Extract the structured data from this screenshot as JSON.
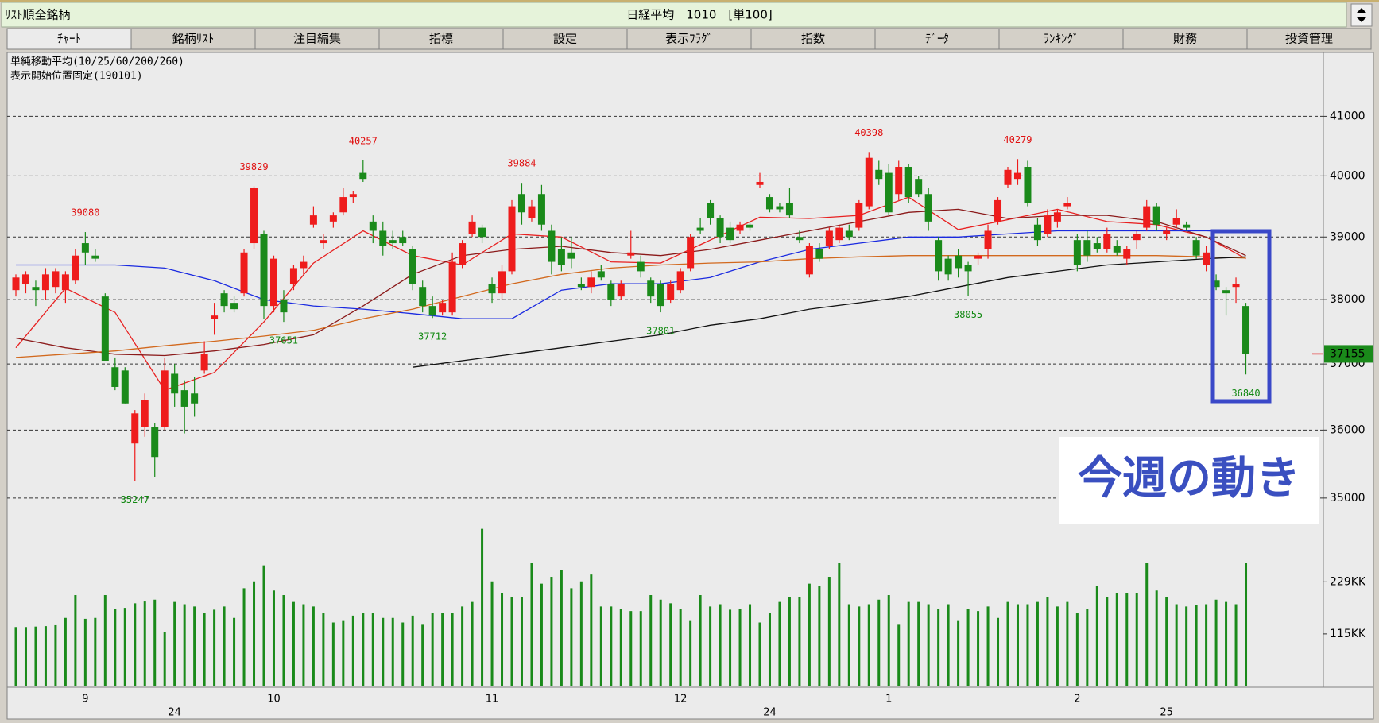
{
  "header": {
    "left": "ﾘｽﾄ順全銘柄",
    "center": "日経平均　1010　[単100]"
  },
  "tabs": [
    "ﾁｬｰﾄ",
    "銘柄ﾘｽﾄ",
    "注目編集",
    "指標",
    "設定",
    "表示ﾌﾗｸﾞ",
    "指数",
    "ﾃﾞｰﾀ",
    "ﾗﾝｷﾝｸﾞ",
    "財務",
    "投資管理"
  ],
  "overlay": {
    "text": "今週の動き"
  },
  "chart_data": {
    "type": "candlestick",
    "notes": [
      "単純移動平均(10/25/60/200/260)",
      "表示開始位置固定(190101)"
    ],
    "log_scale": true,
    "grid": true,
    "up_color": "#ee1c1c",
    "down_color": "#1a8a1a",
    "ylim": [
      34700,
      42100
    ],
    "yticks": [
      35000,
      36000,
      37000,
      38000,
      39000,
      40000,
      41000
    ],
    "ohlc": [
      [
        38150,
        38400,
        38050,
        38350
      ],
      [
        38250,
        38450,
        38100,
        38400
      ],
      [
        38200,
        38300,
        37900,
        38150
      ],
      [
        38150,
        38500,
        38000,
        38400
      ],
      [
        38200,
        38500,
        38100,
        38450
      ],
      [
        38150,
        38450,
        37950,
        38400
      ],
      [
        38300,
        38800,
        38250,
        38700
      ],
      [
        38900,
        39080,
        38550,
        38750
      ],
      [
        38700,
        38800,
        38600,
        38650
      ],
      [
        38050,
        38100,
        37050,
        37050
      ],
      [
        36950,
        37100,
        36600,
        36650
      ],
      [
        36900,
        36950,
        36400,
        36400
      ],
      [
        35800,
        36300,
        35247,
        36250
      ],
      [
        36050,
        36550,
        35900,
        36450
      ],
      [
        36050,
        36100,
        35300,
        35600
      ],
      [
        36050,
        37100,
        36000,
        36900
      ],
      [
        36850,
        37000,
        36350,
        36550
      ],
      [
        36600,
        36750,
        35950,
        36350
      ],
      [
        36550,
        36800,
        36200,
        36400
      ],
      [
        36900,
        37350,
        36850,
        37150
      ],
      [
        37700,
        37950,
        37450,
        37750
      ],
      [
        38100,
        38150,
        37800,
        37900
      ],
      [
        37950,
        38050,
        37800,
        37850
      ],
      [
        38100,
        38800,
        38050,
        38750
      ],
      [
        38900,
        39829,
        38800,
        39800
      ],
      [
        39050,
        39100,
        37700,
        37900
      ],
      [
        37900,
        38700,
        37800,
        38650
      ],
      [
        38000,
        38150,
        37651,
        37800
      ],
      [
        38250,
        38550,
        38150,
        38500
      ],
      [
        38500,
        38700,
        38400,
        38600
      ],
      [
        39200,
        39500,
        39150,
        39350
      ],
      [
        38900,
        39050,
        38800,
        38950
      ],
      [
        39250,
        39400,
        39150,
        39350
      ],
      [
        39400,
        39800,
        39350,
        39650
      ],
      [
        39650,
        39750,
        39550,
        39700
      ],
      [
        40050,
        40257,
        39900,
        39950
      ],
      [
        39250,
        39350,
        38900,
        39100
      ],
      [
        39100,
        39250,
        38700,
        38850
      ],
      [
        38950,
        39100,
        38800,
        38900
      ],
      [
        39000,
        39100,
        38850,
        38900
      ],
      [
        38800,
        38850,
        38150,
        38250
      ],
      [
        38200,
        38300,
        37800,
        37900
      ],
      [
        37900,
        38050,
        37712,
        37750
      ],
      [
        37800,
        38000,
        37750,
        37950
      ],
      [
        37800,
        38750,
        37750,
        38600
      ],
      [
        38550,
        38950,
        38500,
        38900
      ],
      [
        39050,
        39350,
        39000,
        39250
      ],
      [
        39150,
        39200,
        38900,
        39000
      ],
      [
        38250,
        38350,
        37950,
        38100
      ],
      [
        38100,
        38550,
        38000,
        38450
      ],
      [
        38450,
        39600,
        38400,
        39500
      ],
      [
        39700,
        39884,
        39200,
        39400
      ],
      [
        39300,
        39600,
        39250,
        39500
      ],
      [
        39700,
        39850,
        39100,
        39200
      ],
      [
        39100,
        39200,
        38400,
        38600
      ],
      [
        38800,
        39000,
        38450,
        38550
      ],
      [
        38750,
        39000,
        38500,
        38650
      ],
      [
        38250,
        38350,
        38150,
        38200
      ],
      [
        38200,
        38450,
        38100,
        38350
      ],
      [
        38450,
        38550,
        38300,
        38350
      ],
      [
        38250,
        38300,
        37900,
        38000
      ],
      [
        38050,
        38300,
        38000,
        38250
      ],
      [
        38700,
        39100,
        38650,
        38750
      ],
      [
        38600,
        38700,
        38350,
        38450
      ],
      [
        38300,
        38350,
        37950,
        38050
      ],
      [
        38250,
        38300,
        37801,
        37900
      ],
      [
        38000,
        38300,
        37950,
        38250
      ],
      [
        38150,
        38500,
        38100,
        38450
      ],
      [
        38500,
        39050,
        38450,
        39000
      ],
      [
        39150,
        39300,
        39050,
        39100
      ],
      [
        39550,
        39600,
        39200,
        39300
      ],
      [
        39300,
        39350,
        38900,
        39000
      ],
      [
        39150,
        39250,
        38900,
        38950
      ],
      [
        39100,
        39250,
        39050,
        39200
      ],
      [
        39200,
        39250,
        39100,
        39150
      ],
      [
        39850,
        40050,
        39800,
        39900
      ],
      [
        39650,
        39700,
        39400,
        39450
      ],
      [
        39500,
        39550,
        39400,
        39450
      ],
      [
        39550,
        39800,
        39300,
        39350
      ],
      [
        39000,
        39100,
        38900,
        38950
      ],
      [
        38400,
        38900,
        38350,
        38850
      ],
      [
        38800,
        38900,
        38600,
        38650
      ],
      [
        38850,
        39150,
        38800,
        39100
      ],
      [
        38950,
        39200,
        38900,
        39150
      ],
      [
        39100,
        39200,
        38950,
        39000
      ],
      [
        39150,
        39600,
        39100,
        39550
      ],
      [
        39500,
        40398,
        39450,
        40300
      ],
      [
        40100,
        40250,
        39850,
        39950
      ],
      [
        40050,
        40200,
        39350,
        39400
      ],
      [
        39700,
        40250,
        39600,
        40150
      ],
      [
        40150,
        40200,
        39550,
        39650
      ],
      [
        39950,
        40000,
        39650,
        39700
      ],
      [
        39700,
        39800,
        39100,
        39250
      ],
      [
        38950,
        39000,
        38300,
        38450
      ],
      [
        38650,
        38700,
        38300,
        38400
      ],
      [
        38700,
        38800,
        38350,
        38500
      ],
      [
        38550,
        38600,
        38055,
        38450
      ],
      [
        38650,
        38750,
        38550,
        38700
      ],
      [
        38800,
        39200,
        38650,
        39100
      ],
      [
        39250,
        39650,
        39200,
        39600
      ],
      [
        39850,
        40150,
        39800,
        40100
      ],
      [
        39950,
        40279,
        39850,
        40050
      ],
      [
        40150,
        40250,
        39500,
        39550
      ],
      [
        39200,
        39300,
        38850,
        38950
      ],
      [
        39050,
        39450,
        39000,
        39350
      ],
      [
        39250,
        39450,
        39150,
        39400
      ],
      [
        39500,
        39650,
        39450,
        39550
      ],
      [
        38950,
        39050,
        38450,
        38550
      ],
      [
        38950,
        39100,
        38600,
        38700
      ],
      [
        38900,
        39000,
        38750,
        38800
      ],
      [
        38800,
        39150,
        38750,
        39050
      ],
      [
        38850,
        38950,
        38700,
        38750
      ],
      [
        38650,
        38850,
        38550,
        38800
      ],
      [
        38950,
        39100,
        38800,
        39050
      ],
      [
        39150,
        39600,
        39100,
        39500
      ],
      [
        39500,
        39550,
        39100,
        39200
      ],
      [
        39050,
        39150,
        38950,
        39100
      ],
      [
        39200,
        39450,
        39150,
        39300
      ],
      [
        39200,
        39250,
        39100,
        39150
      ],
      [
        38950,
        39000,
        38650,
        38700
      ],
      [
        38550,
        38850,
        38450,
        38750
      ],
      [
        38300,
        38400,
        38150,
        38200
      ],
      [
        38150,
        38200,
        37750,
        38100
      ],
      [
        38200,
        38350,
        37950,
        38250
      ],
      [
        37900,
        37950,
        36840,
        37155
      ]
    ],
    "categories": [
      null,
      null,
      null,
      null,
      null,
      null,
      null,
      "9",
      null,
      null,
      null,
      null,
      null,
      null,
      null,
      null,
      null,
      null,
      null,
      null,
      null,
      null,
      null,
      null,
      null,
      null,
      "10",
      null,
      null,
      null,
      null,
      null,
      null,
      null,
      null,
      null,
      null,
      null,
      null,
      null,
      null,
      null,
      null,
      null,
      null,
      null,
      null,
      null,
      "11",
      null,
      null,
      null,
      null,
      null,
      null,
      null,
      null,
      null,
      null,
      null,
      null,
      null,
      null,
      null,
      null,
      null,
      null,
      "12",
      null,
      null,
      null,
      null,
      null,
      null,
      null,
      null,
      null,
      null,
      null,
      null,
      null,
      null,
      null,
      null,
      null,
      null,
      null,
      null,
      "1",
      null,
      null,
      null,
      null,
      null,
      null,
      null,
      null,
      null,
      null,
      null,
      null,
      null,
      null,
      null,
      null,
      null,
      null,
      "2",
      null,
      null,
      null,
      null,
      null,
      null,
      null,
      null,
      null,
      null,
      null,
      null,
      null,
      null,
      null,
      null,
      null
    ],
    "sub_categories": [
      null,
      null,
      null,
      null,
      null,
      null,
      null,
      null,
      null,
      null,
      null,
      null,
      null,
      null,
      null,
      null,
      "24",
      null,
      null,
      null,
      null,
      null,
      null,
      null,
      null,
      null,
      null,
      null,
      null,
      null,
      null,
      null,
      null,
      null,
      null,
      null,
      null,
      null,
      null,
      null,
      null,
      null,
      null,
      null,
      null,
      null,
      null,
      null,
      null,
      null,
      null,
      null,
      null,
      null,
      null,
      null,
      null,
      null,
      null,
      null,
      null,
      null,
      null,
      null,
      null,
      null,
      null,
      null,
      null,
      null,
      null,
      null,
      null,
      null,
      null,
      null,
      "24",
      null,
      null,
      null,
      null,
      null,
      null,
      null,
      null,
      null,
      null,
      null,
      null,
      null,
      null,
      null,
      null,
      null,
      null,
      null,
      null,
      null,
      null,
      null,
      null,
      null,
      null,
      null,
      null,
      null,
      null,
      null,
      null,
      null,
      null,
      null,
      null,
      null,
      null,
      null,
      "25",
      null,
      null,
      null,
      null,
      null,
      null,
      null,
      null
    ],
    "high_labels": [
      {
        "x": 7,
        "value": 39080
      },
      {
        "x": 24,
        "value": 39829
      },
      {
        "x": 35,
        "value": 40257
      },
      {
        "x": 51,
        "value": 39884
      },
      {
        "x": 86,
        "value": 40398
      },
      {
        "x": 101,
        "value": 40279
      }
    ],
    "low_labels": [
      {
        "x": 12,
        "value": 35247
      },
      {
        "x": 27,
        "value": 37651
      },
      {
        "x": 42,
        "value": 37712
      },
      {
        "x": 65,
        "value": 37801
      },
      {
        "x": 96,
        "value": 38055
      },
      {
        "x": 124,
        "value": 36840
      }
    ],
    "last_price": 37155,
    "moving_averages": {
      "x": [
        0,
        5,
        10,
        15,
        20,
        25,
        30,
        35,
        40,
        45,
        50,
        55,
        60,
        65,
        70,
        75,
        80,
        85,
        90,
        95,
        100,
        105,
        110,
        115,
        120,
        124
      ],
      "series": [
        {
          "color": "#e82020",
          "values": [
            37250,
            38180,
            37800,
            36600,
            36870,
            37650,
            38580,
            39100,
            38700,
            38550,
            39050,
            39000,
            38600,
            38580,
            38950,
            39320,
            39300,
            39350,
            39650,
            39120,
            39280,
            39450,
            39250,
            39200,
            39000,
            38650
          ]
        },
        {
          "color": "#8b1a1a",
          "values": [
            37400,
            37250,
            37150,
            37130,
            37200,
            37300,
            37450,
            37900,
            38400,
            38700,
            38800,
            38850,
            38750,
            38700,
            38800,
            38950,
            39100,
            39250,
            39400,
            39450,
            39300,
            39350,
            39350,
            39250,
            39000,
            38700
          ]
        },
        {
          "color": "#1a2ae0",
          "values": [
            38550,
            38550,
            38550,
            38500,
            38300,
            38000,
            37900,
            37850,
            37780,
            37700,
            37700,
            38150,
            38250,
            38250,
            38350,
            38600,
            38800,
            38900,
            39000,
            39000,
            39050,
            39100,
            39100,
            39100,
            39100,
            39080
          ]
        },
        {
          "color": "#d2691e",
          "values": [
            37100,
            37150,
            37200,
            37280,
            37350,
            37430,
            37520,
            37700,
            37850,
            38050,
            38250,
            38400,
            38500,
            38550,
            38580,
            38600,
            38650,
            38680,
            38700,
            38700,
            38700,
            38700,
            38700,
            38700,
            38680,
            38660
          ]
        },
        {
          "color": "#111111",
          "values": [
            null,
            null,
            null,
            null,
            null,
            null,
            null,
            null,
            36950,
            37050,
            37150,
            37250,
            37350,
            37450,
            37600,
            37700,
            37850,
            37950,
            38050,
            38200,
            38350,
            38450,
            38550,
            38600,
            38650,
            38680
          ]
        }
      ]
    },
    "volume": {
      "color": "#1a8a1a",
      "ylim": [
        0,
        367
      ],
      "yticks": [
        {
          "value": 115,
          "label": "115KK"
        },
        {
          "value": 229,
          "label": "229KK"
        }
      ],
      "values": [
        130,
        130,
        131,
        132,
        134,
        150,
        200,
        148,
        150,
        200,
        170,
        172,
        182,
        186,
        190,
        120,
        185,
        180,
        175,
        160,
        168,
        175,
        150,
        215,
        230,
        265,
        210,
        200,
        185,
        180,
        175,
        160,
        140,
        145,
        155,
        160,
        160,
        150,
        150,
        140,
        155,
        135,
        160,
        160,
        160,
        175,
        185,
        345,
        230,
        205,
        195,
        195,
        270,
        225,
        240,
        255,
        215,
        230,
        245,
        175,
        175,
        170,
        165,
        165,
        200,
        190,
        182,
        170,
        145,
        200,
        175,
        180,
        168,
        170,
        180,
        140,
        160,
        185,
        195,
        195,
        225,
        220,
        240,
        270,
        180,
        175,
        180,
        190,
        200,
        135,
        185,
        185,
        180,
        170,
        180,
        145,
        170,
        165,
        175,
        150,
        185,
        180,
        180,
        185,
        195,
        175,
        185,
        160,
        170,
        220,
        195,
        205,
        205,
        205,
        270,
        210,
        195,
        180,
        175,
        178,
        180,
        190,
        185,
        180,
        270
      ]
    }
  }
}
